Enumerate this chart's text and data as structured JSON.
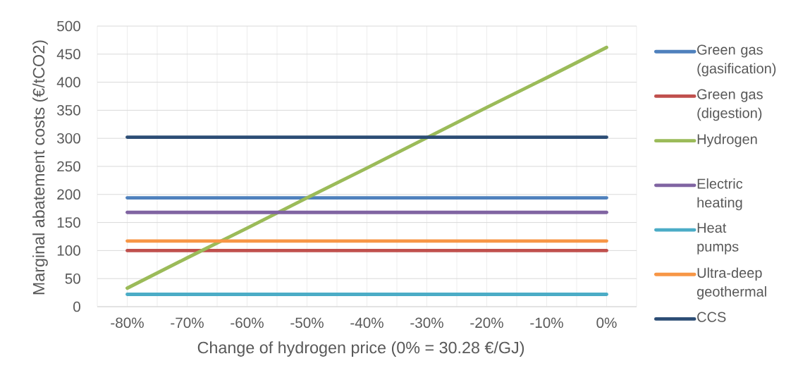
{
  "chart_data": {
    "type": "line",
    "xlabel": "Change of hydrogen price (0% = 30.28 €/GJ)",
    "ylabel": "Marginal abatement costs (€/tCO2)",
    "categories": [
      "-80%",
      "-70%",
      "-60%",
      "-50%",
      "-40%",
      "-30%",
      "-20%",
      "-10%",
      "0%"
    ],
    "series": [
      {
        "name": "Green gas (gasification)",
        "color": "#4f81bd",
        "values": [
          194,
          194,
          194,
          194,
          194,
          194,
          194,
          194,
          194
        ]
      },
      {
        "name": "Green gas (digestion)",
        "color": "#c0504d",
        "values": [
          100,
          100,
          100,
          100,
          100,
          100,
          100,
          100,
          100
        ]
      },
      {
        "name": "Hydrogen",
        "color": "#9bbb59",
        "values": [
          33,
          87,
          140,
          194,
          247,
          301,
          355,
          408,
          462
        ]
      },
      {
        "name": "Electric heating",
        "color": "#8064a2",
        "values": [
          168,
          168,
          168,
          168,
          168,
          168,
          168,
          168,
          168
        ]
      },
      {
        "name": "Heat pumps",
        "color": "#4bacc6",
        "values": [
          22,
          22,
          22,
          22,
          22,
          22,
          22,
          22,
          22
        ]
      },
      {
        "name": "Ultra-deep geothermal",
        "color": "#f79646",
        "values": [
          117,
          117,
          117,
          117,
          117,
          117,
          117,
          117,
          117
        ]
      },
      {
        "name": "CCS",
        "color": "#2c4d75",
        "values": [
          302,
          302,
          302,
          302,
          302,
          302,
          302,
          302,
          302
        ]
      }
    ],
    "ylim": [
      0,
      500
    ],
    "yticks": [
      0,
      50,
      100,
      150,
      200,
      250,
      300,
      350,
      400,
      450,
      500
    ],
    "grid": true,
    "legend": "right"
  }
}
